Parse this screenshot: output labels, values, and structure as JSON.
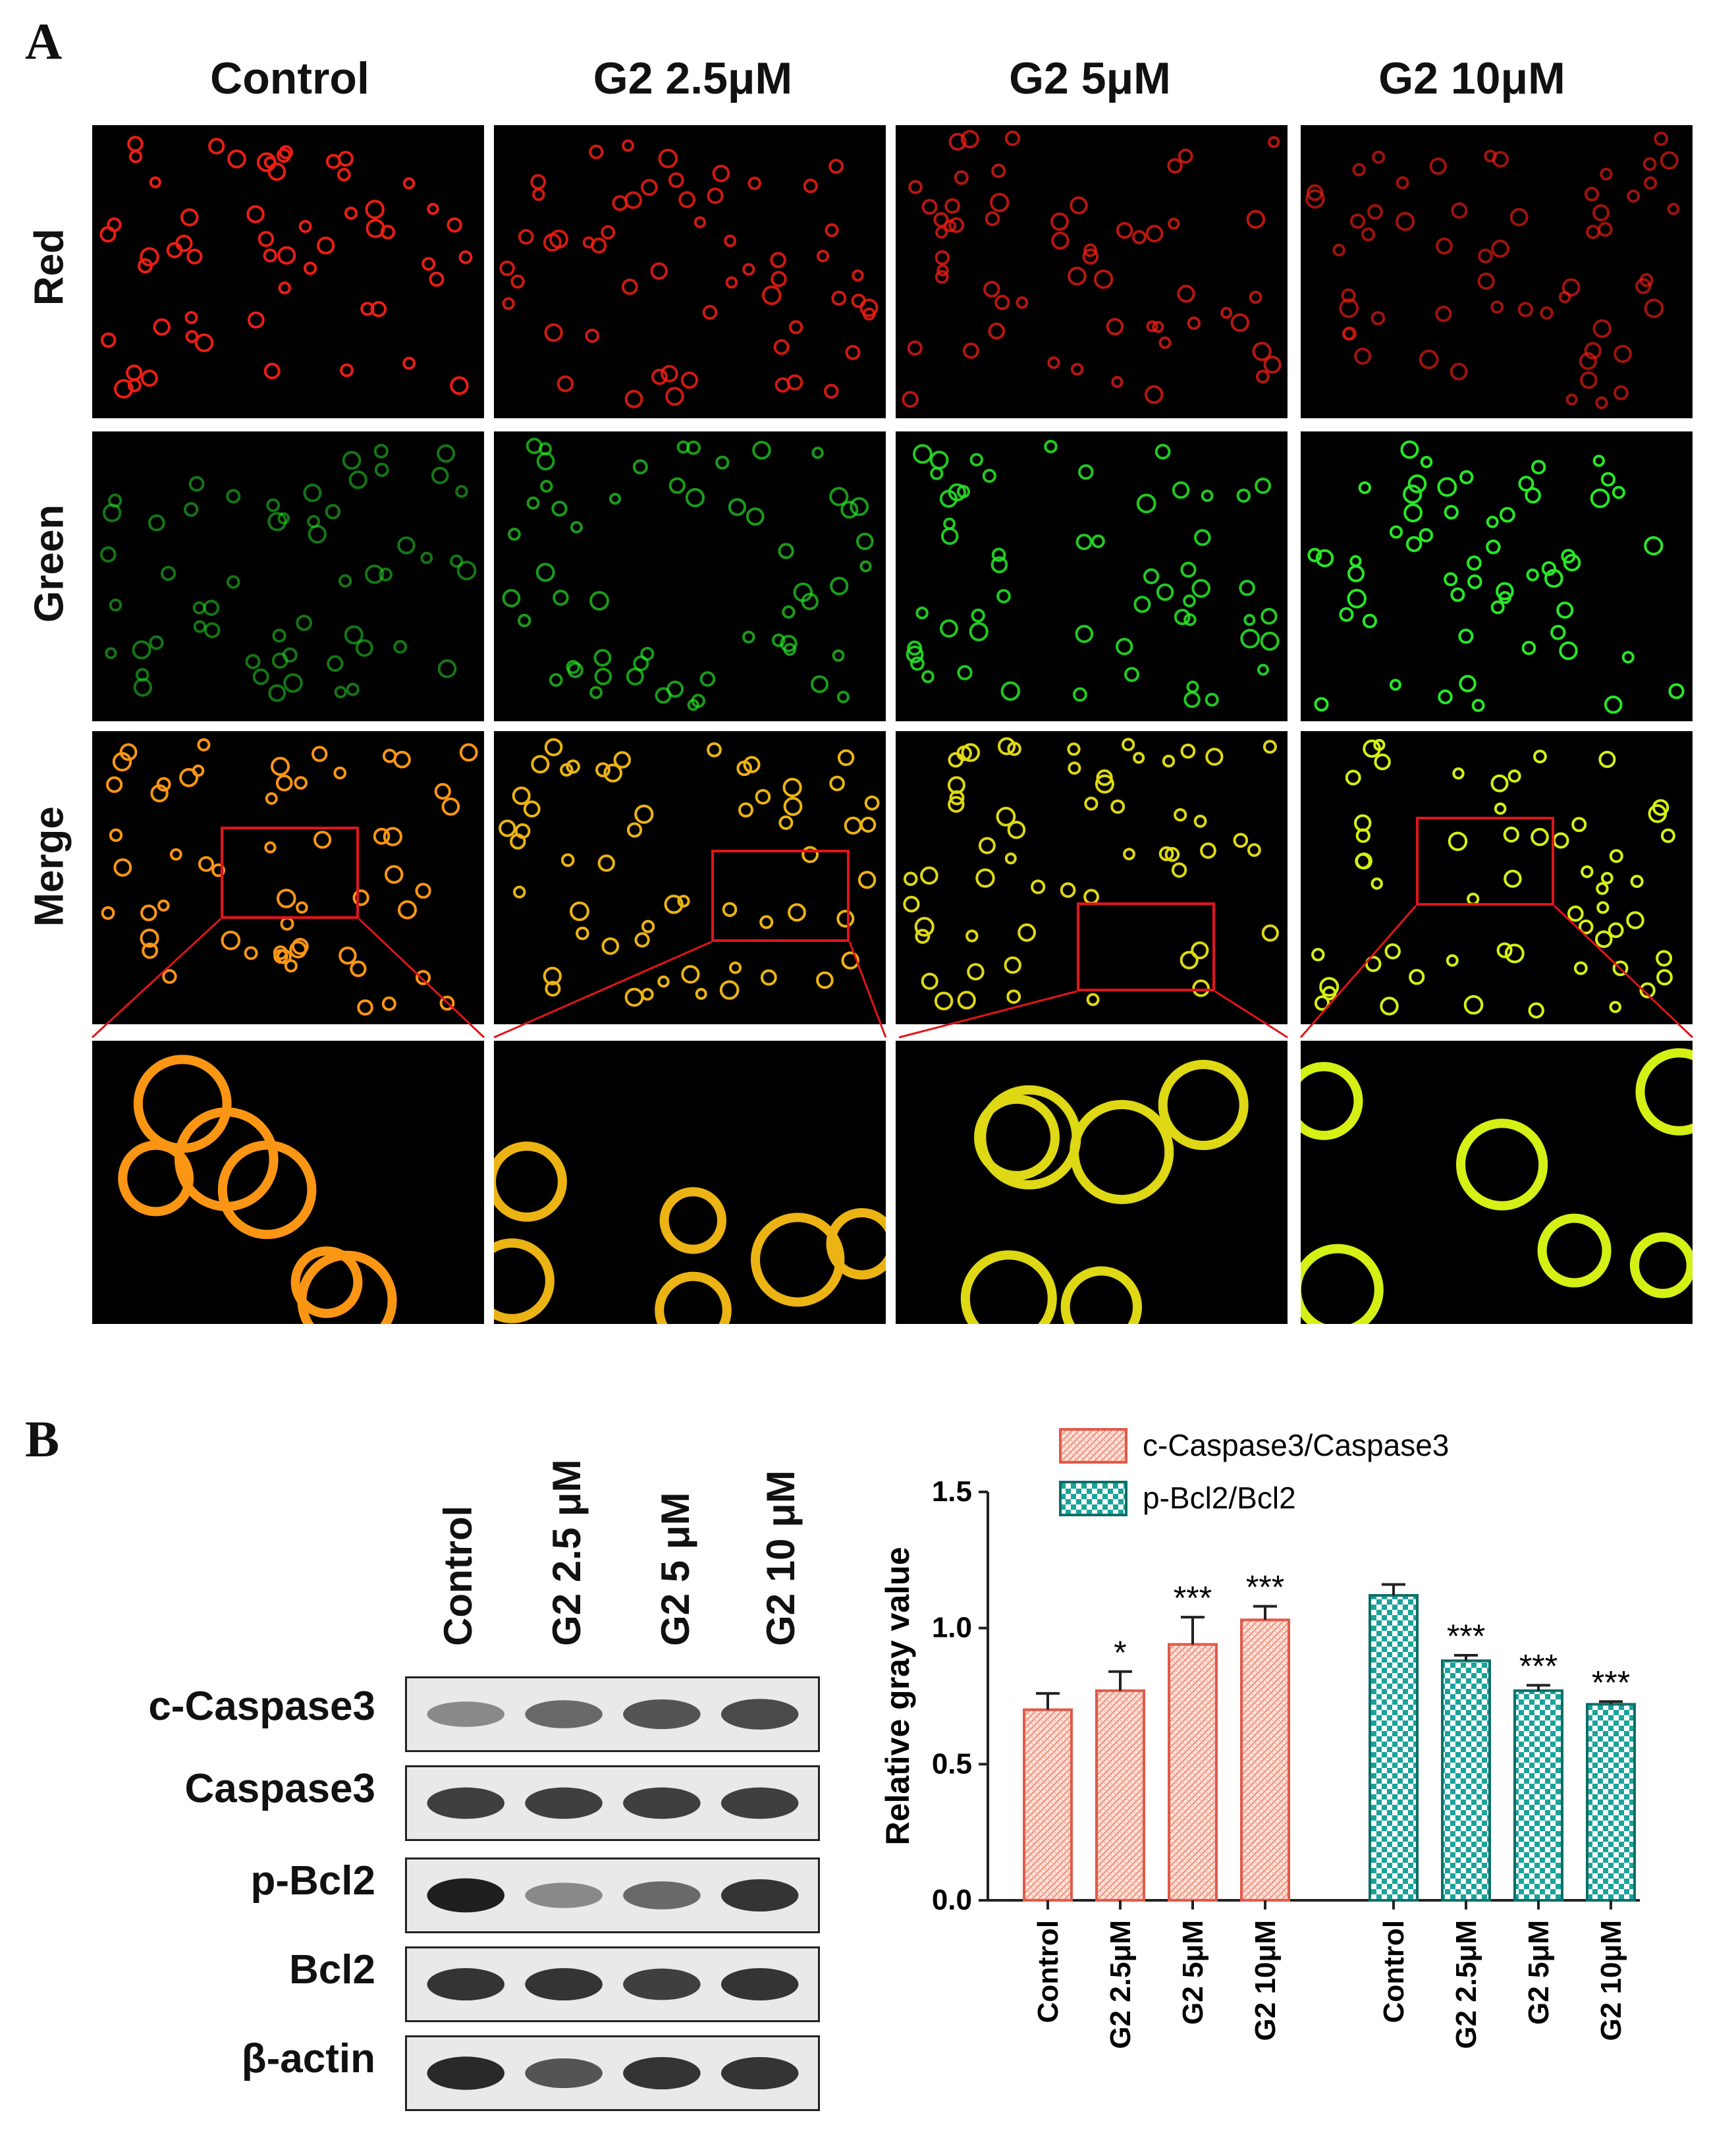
{
  "panel_a": {
    "letter": "A",
    "columns": [
      "Control",
      "G2 2.5μM",
      "G2 5μM",
      "G2 10μM"
    ],
    "rows": [
      "Red",
      "Green",
      "Merge"
    ]
  },
  "panel_b": {
    "letter": "B",
    "lanes": [
      "Control",
      "G2 2.5 μM",
      "G2 5 μM",
      "G2 10 μM"
    ],
    "blots": [
      "c-Caspase3",
      "Caspase3",
      "p-Bcl2",
      "Bcl2",
      "β-actin"
    ]
  },
  "colors": {
    "zoom_box": "#e0151a",
    "series1_fill": "#f8c8b8",
    "series1_edge": "#e05a4a",
    "series2_fill": "#1aa39a",
    "series2_edge": "#0d6f68"
  },
  "chart_data": {
    "type": "bar",
    "ylabel": "Relative gray value",
    "ylim": [
      0,
      1.5
    ],
    "yticks": [
      "0.0",
      "0.5",
      "1.0",
      "1.5"
    ],
    "legend_position": "top",
    "groups": [
      {
        "name": "c-Caspase3/Caspase3",
        "pattern": "hatched",
        "categories": [
          "Control",
          "G2 2.5μM",
          "G2 5μM",
          "G2 10μM"
        ],
        "values": [
          0.7,
          0.77,
          0.94,
          1.03
        ],
        "errors": [
          0.06,
          0.07,
          0.1,
          0.05
        ],
        "significance": [
          "",
          "*",
          "***",
          "***"
        ]
      },
      {
        "name": "p-Bcl2/Bcl2",
        "pattern": "checkered",
        "categories": [
          "Control",
          "G2 2.5μM",
          "G2 5μM",
          "G2 10μM"
        ],
        "values": [
          1.12,
          0.88,
          0.77,
          0.72
        ],
        "errors": [
          0.04,
          0.02,
          0.02,
          0.01
        ],
        "significance": [
          "",
          "***",
          "***",
          "***"
        ]
      }
    ]
  }
}
